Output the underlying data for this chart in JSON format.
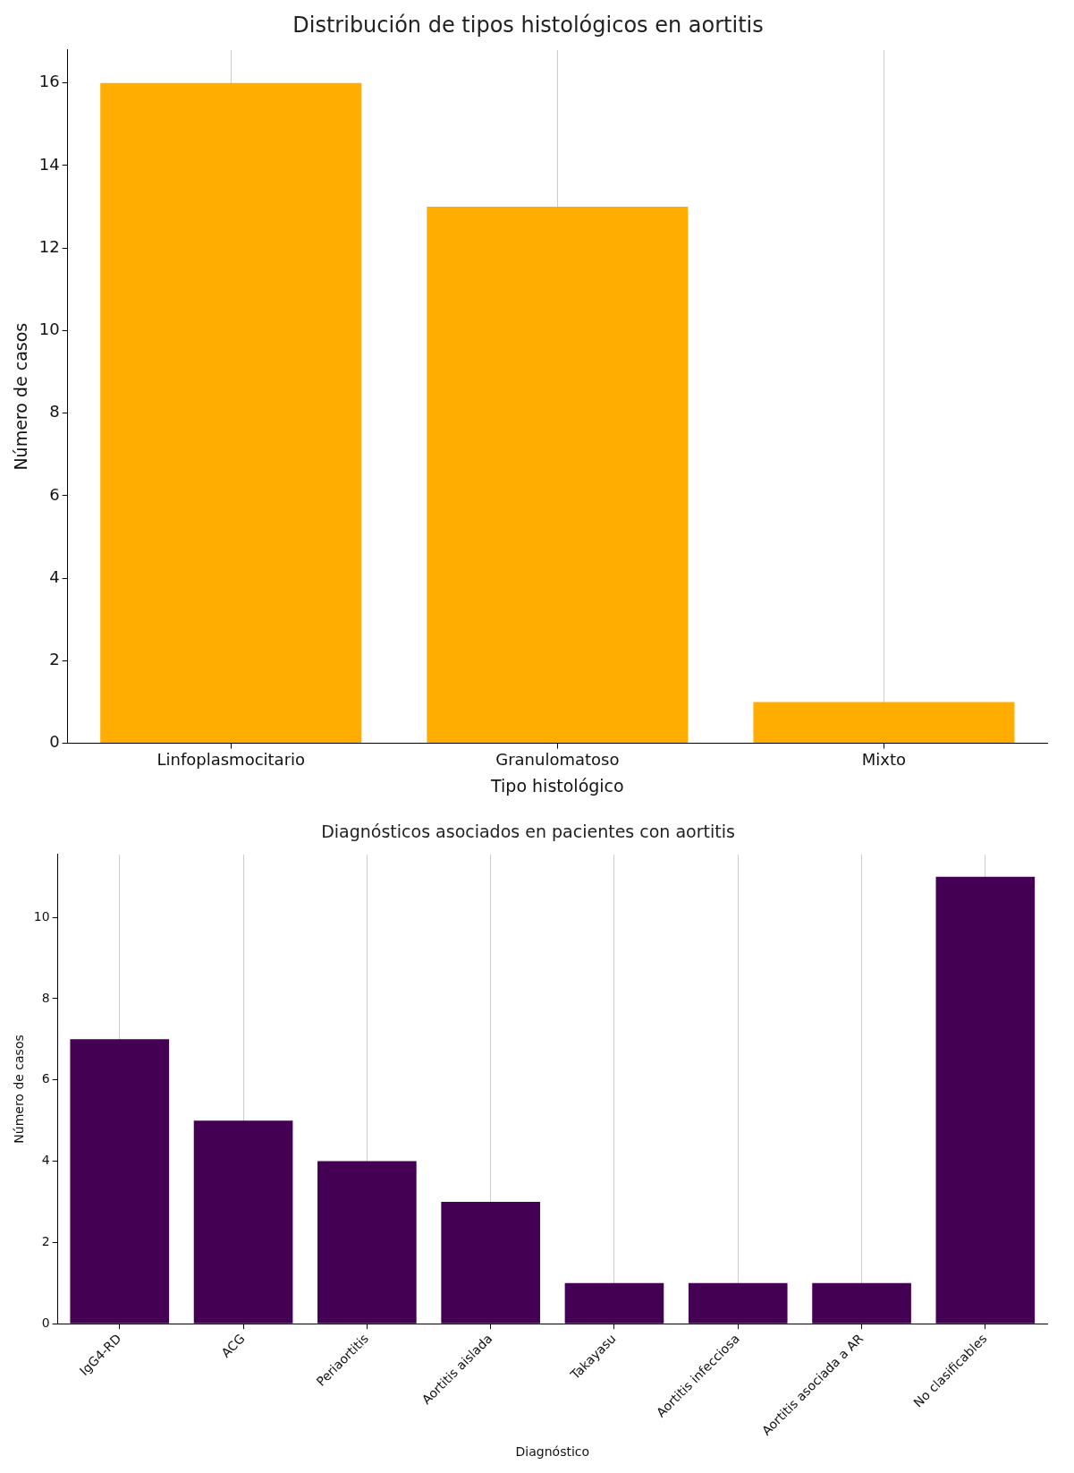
{
  "chart_data": [
    {
      "type": "bar",
      "title": "Distribución de tipos histológicos en aortitis",
      "xlabel": "Tipo histológico",
      "ylabel": "Número de casos",
      "categories": [
        "Linfoplasmocitario",
        "Granulomatoso",
        "Mixto"
      ],
      "values": [
        16,
        13,
        1
      ],
      "color": "#ffad00",
      "ylim": [
        0,
        16.8
      ],
      "yticks": [
        0,
        2,
        4,
        6,
        8,
        10,
        12,
        14,
        16
      ],
      "grid": "x"
    },
    {
      "type": "bar",
      "title": "Diagnósticos asociados en pacientes con aortitis",
      "xlabel": "Diagnóstico",
      "ylabel": "Número de casos",
      "categories": [
        "IgG4-RD",
        "ACG",
        "Periaortitis",
        "Aortitis aislada",
        "Takayasu",
        "Aortitis infecciosa",
        "Aortitis asociada a AR",
        "No clasificables"
      ],
      "values": [
        7,
        5,
        4,
        3,
        1,
        1,
        1,
        11
      ],
      "color": "#440154",
      "ylim": [
        0,
        11.55
      ],
      "yticks": [
        0,
        2,
        4,
        6,
        8,
        10
      ],
      "grid": "x"
    }
  ]
}
